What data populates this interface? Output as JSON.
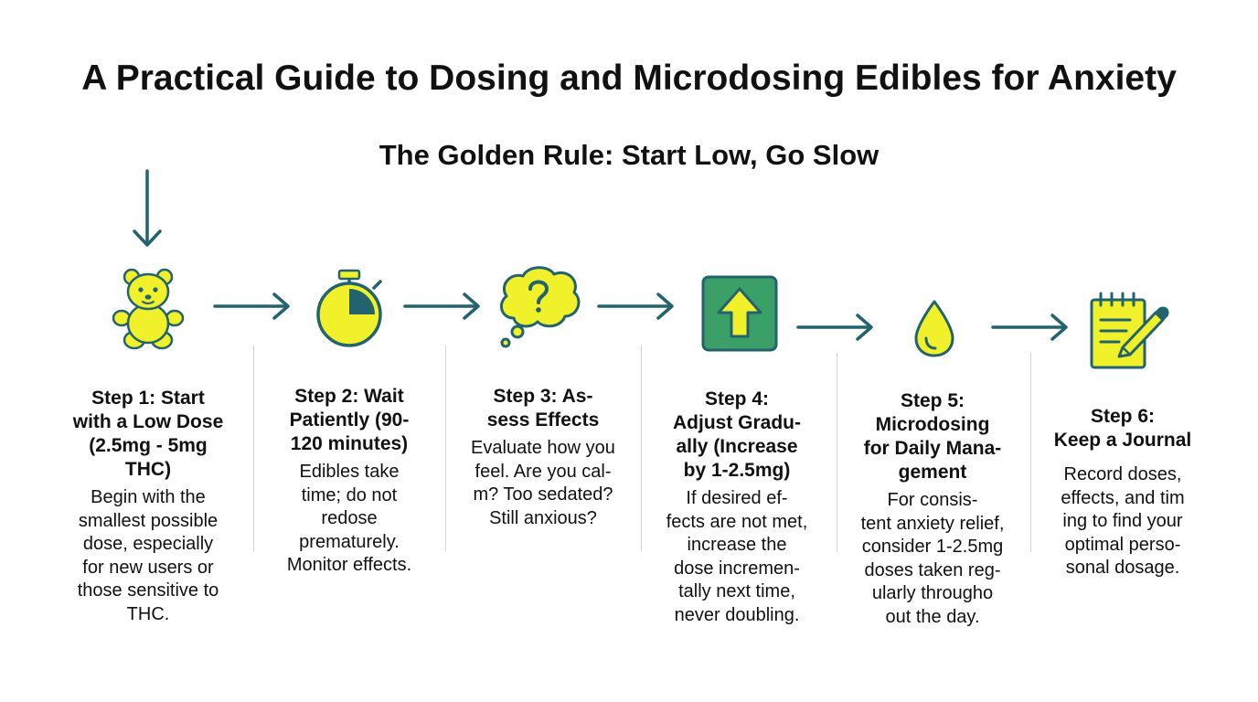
{
  "title": "A Practical Guide to Dosing and Microdosing Edibles for Anxiety",
  "subtitle": "The Golden Rule: Start Low, Go Slow",
  "colors": {
    "icon_fill": "#f0f12a",
    "icon_stroke": "#22636e",
    "arrow": "#22636e",
    "up_box": "#3aa068",
    "divider": "#d3d3d3"
  },
  "steps": [
    {
      "icon": "gummy-bear-icon",
      "title": "Step 1: Start\nwith a Low Dose\n(2.5mg - 5mg\nTHC)",
      "body": "Begin with the\nsmallest possible\ndose, especially\nfor new users or\nthose sensitive to\nTHC."
    },
    {
      "icon": "stopwatch-icon",
      "title": "Step 2: Wait\nPatiently (90-\n120 minutes)",
      "body": "Edibles take\ntime; do not\nredose\nprematurely.\nMonitor effects."
    },
    {
      "icon": "thought-bubble-icon",
      "title": "Step 3: As-\nsess Effects",
      "body": "Evaluate how you\nfeel. Are you cal-\nm? Too sedated?\nStill anxious?"
    },
    {
      "icon": "up-arrow-box-icon",
      "title": "Step 4:\nAdjust Gradu-\nally (Increase\nby 1-2.5mg)",
      "body": "If desired ef-\nfects are not met,\nincrease the\ndose incremen-\ntally next time,\nnever doubling."
    },
    {
      "icon": "droplet-icon",
      "title": "Step 5:\nMicrodosing\nfor Daily Mana-\ngement",
      "body": "For consis-\ntent anxiety relief,\nconsider 1-2.5mg\ndoses taken reg-\nularly througho\nout the day."
    },
    {
      "icon": "journal-pen-icon",
      "title": "Step 6:\nKeep a Journal",
      "body": "Record doses,\neffects, and tim\ning to find your\noptimal perso-\nsonal dosage."
    }
  ]
}
